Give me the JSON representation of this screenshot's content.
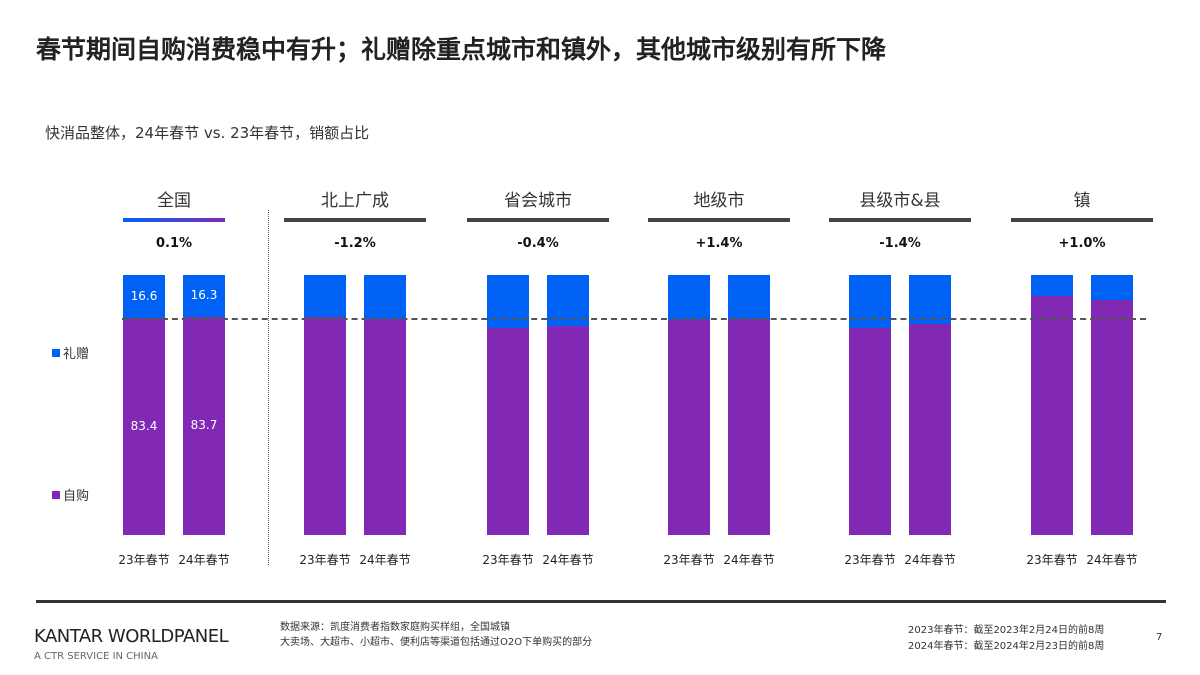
{
  "title": "春节期间自购消费稳中有升；礼赠除重点城市和镇外，其他城市级别有所下降",
  "subtitle": "快消品整体，24年春节 vs. 23年春节，销额占比",
  "chart_data": {
    "type": "bar",
    "stacked": true,
    "percent_stacked": true,
    "ylim": [
      0,
      100
    ],
    "colors": {
      "礼赠": "#0062f5",
      "自购": "#8129b5"
    },
    "legend": [
      "礼赠",
      "自购"
    ],
    "legend_placement": "left",
    "groups": [
      {
        "name": "全国",
        "change": "0.1%",
        "categories": [
          "23年春节",
          "24年春节"
        ],
        "礼赠": [
          16.6,
          16.3
        ],
        "自购": [
          83.4,
          83.7
        ],
        "labels_shown": true
      },
      {
        "name": "北上广成",
        "change": "-1.2%",
        "categories": [
          "23年春节",
          "24年春节"
        ],
        "礼赠": [
          16.2,
          16.9
        ],
        "自购": [
          83.8,
          83.1
        ],
        "labels_shown": false
      },
      {
        "name": "省会城市",
        "change": "-0.4%",
        "categories": [
          "23年春节",
          "24年春节"
        ],
        "礼赠": [
          20.4,
          19.6
        ],
        "自购": [
          79.6,
          80.4
        ],
        "labels_shown": false
      },
      {
        "name": "地级市",
        "change": "+1.4%",
        "categories": [
          "23年春节",
          "24年春节"
        ],
        "礼赠": [
          17.3,
          16.9
        ],
        "自购": [
          82.7,
          83.1
        ],
        "labels_shown": false
      },
      {
        "name": "县级市&县",
        "change": "-1.4%",
        "categories": [
          "23年春节",
          "24年春节"
        ],
        "礼赠": [
          20.4,
          18.8
        ],
        "自购": [
          79.6,
          81.2
        ],
        "labels_shown": false
      },
      {
        "name": "镇",
        "change": "+1.0%",
        "categories": [
          "23年春节",
          "24年春节"
        ],
        "礼赠": [
          8.1,
          9.6
        ],
        "自购": [
          91.9,
          90.4
        ],
        "labels_shown": false
      }
    ]
  },
  "footer": {
    "logo": "KANTAR WORLDPANEL",
    "logo_sub": "A CTR SERVICE IN CHINA",
    "source_line1": "数据来源：凯度消费者指数家庭购买样组，全国城镇",
    "source_line2": "大卖场、大超市、小超市、便利店等渠道包括通过O2O下单购买的部分",
    "note_line1": "2023年春节：截至2023年2月24日的前8周",
    "note_line2": "2024年春节：截至2024年2月23日的前8周",
    "page_number": "7"
  }
}
